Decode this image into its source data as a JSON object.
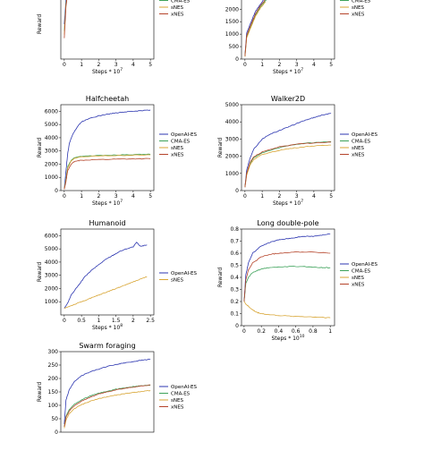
{
  "legend_colors": {
    "OpenAI-ES": "#2b35b0",
    "CMA-ES": "#3da25a",
    "sNES": "#d8a534",
    "xNES": "#b5442a"
  },
  "chart_data": [
    {
      "type": "line",
      "title": "",
      "xlabel": "Steps * 10^7",
      "ylabel": "Reward",
      "xlim": [
        -0.2,
        5.2
      ],
      "ylim": [
        0,
        1000
      ],
      "xticks": [
        0,
        1,
        2,
        3,
        4,
        5
      ],
      "yticks": [],
      "legend": [
        "OpenAI-ES",
        "CMA-ES",
        "sNES",
        "xNES"
      ],
      "series": [
        {
          "name": "OpenAI-ES",
          "x": [
            0,
            0.1,
            0.2,
            0.3
          ],
          "y": [
            500,
            850,
            980,
            1000
          ]
        },
        {
          "name": "CMA-ES",
          "x": [
            0,
            0.1,
            0.2,
            0.3
          ],
          "y": [
            400,
            800,
            960,
            1000
          ]
        },
        {
          "name": "sNES",
          "x": [
            0,
            0.1,
            0.2,
            0.3
          ],
          "y": [
            350,
            780,
            950,
            1000
          ]
        },
        {
          "name": "xNES",
          "x": [
            0,
            0.1,
            0.2,
            0.3
          ],
          "y": [
            300,
            760,
            940,
            1000
          ]
        }
      ]
    },
    {
      "type": "line",
      "title": "",
      "xlabel": "Steps * 10^7",
      "ylabel": "",
      "xlim": [
        -0.2,
        5.2
      ],
      "ylim": [
        0,
        2800
      ],
      "xticks": [
        0,
        1,
        2,
        3,
        4,
        5
      ],
      "yticks": [
        0,
        500,
        1000,
        1500,
        2000,
        2500
      ],
      "legend": [
        "OpenAI-ES",
        "CMA-ES",
        "sNES",
        "xNES"
      ],
      "series": [
        {
          "name": "OpenAI-ES",
          "x": [
            0,
            0.1,
            0.3,
            0.6,
            0.9,
            1.2,
            1.5
          ],
          "y": [
            150,
            1050,
            1400,
            1900,
            2200,
            2500,
            2650
          ]
        },
        {
          "name": "CMA-ES",
          "x": [
            0,
            0.1,
            0.3,
            0.6,
            0.9,
            1.2,
            1.5
          ],
          "y": [
            100,
            900,
            1250,
            1750,
            2100,
            2350,
            2550
          ]
        },
        {
          "name": "sNES",
          "x": [
            0,
            0.1,
            0.3,
            0.6,
            0.9,
            1.2
          ],
          "y": [
            100,
            850,
            1200,
            1700,
            2050,
            2300
          ]
        },
        {
          "name": "xNES",
          "x": [
            0,
            0.1,
            0.3,
            0.6,
            0.9,
            1.2,
            1.4
          ],
          "y": [
            120,
            950,
            1300,
            1800,
            2150,
            2400,
            2600
          ]
        }
      ]
    },
    {
      "type": "line",
      "title": "Halfcheetah",
      "xlabel": "Steps * 10^7",
      "ylabel": "Reward",
      "xlim": [
        -0.2,
        5.2
      ],
      "ylim": [
        0,
        6500
      ],
      "xticks": [
        0,
        1,
        2,
        3,
        4,
        5
      ],
      "yticks": [
        0,
        1000,
        2000,
        3000,
        4000,
        5000,
        6000
      ],
      "legend": [
        "OpenAI-ES",
        "CMA-ES",
        "sNES",
        "xNES"
      ],
      "series": [
        {
          "name": "OpenAI-ES",
          "x": [
            0,
            0.1,
            0.2,
            0.3,
            0.5,
            0.8,
            1.0,
            1.5,
            2.0,
            2.5,
            3.0,
            3.5,
            4.0,
            4.5,
            5.0
          ],
          "y": [
            100,
            1500,
            2800,
            3600,
            4300,
            4900,
            5200,
            5500,
            5650,
            5780,
            5880,
            5950,
            6000,
            6050,
            6100
          ]
        },
        {
          "name": "CMA-ES",
          "x": [
            0,
            0.1,
            0.2,
            0.4,
            0.6,
            1.0,
            2.0,
            3.0,
            4.0,
            5.0
          ],
          "y": [
            100,
            900,
            1800,
            2300,
            2500,
            2600,
            2650,
            2700,
            2720,
            2750
          ]
        },
        {
          "name": "sNES",
          "x": [
            0,
            0.1,
            0.2,
            0.4,
            0.6,
            1.0,
            2.0,
            3.0,
            4.0,
            5.0
          ],
          "y": [
            100,
            800,
            1700,
            2250,
            2450,
            2550,
            2620,
            2650,
            2680,
            2700
          ]
        },
        {
          "name": "xNES",
          "x": [
            0,
            0.1,
            0.2,
            0.4,
            0.6,
            1.0,
            2.0,
            3.0,
            4.0,
            5.0
          ],
          "y": [
            100,
            700,
            1500,
            2000,
            2200,
            2300,
            2350,
            2380,
            2400,
            2420
          ]
        }
      ]
    },
    {
      "type": "line",
      "title": "Walker2D",
      "xlabel": "Steps * 10^7",
      "ylabel": "Reward",
      "xlim": [
        -0.2,
        5.2
      ],
      "ylim": [
        0,
        5000
      ],
      "xticks": [
        0,
        1,
        2,
        3,
        4,
        5
      ],
      "yticks": [
        0,
        1000,
        2000,
        3000,
        4000,
        5000
      ],
      "legend": [
        "OpenAI-ES",
        "CMA-ES",
        "sNES",
        "xNES"
      ],
      "series": [
        {
          "name": "OpenAI-ES",
          "x": [
            0,
            0.1,
            0.3,
            0.5,
            1.0,
            1.5,
            2.0,
            2.5,
            3.0,
            3.5,
            4.0,
            4.5,
            5.0
          ],
          "y": [
            200,
            1200,
            1900,
            2400,
            3000,
            3300,
            3500,
            3700,
            3900,
            4100,
            4250,
            4400,
            4500
          ]
        },
        {
          "name": "CMA-ES",
          "x": [
            0,
            0.1,
            0.3,
            0.5,
            1.0,
            2.0,
            3.0,
            4.0,
            5.0
          ],
          "y": [
            200,
            1000,
            1600,
            1900,
            2200,
            2500,
            2700,
            2800,
            2850
          ]
        },
        {
          "name": "sNES",
          "x": [
            0,
            0.1,
            0.3,
            0.5,
            1.0,
            2.0,
            3.0,
            4.0,
            5.0
          ],
          "y": [
            200,
            900,
            1500,
            1800,
            2100,
            2350,
            2500,
            2600,
            2650
          ]
        },
        {
          "name": "xNES",
          "x": [
            0,
            0.1,
            0.3,
            0.5,
            1.0,
            2.0,
            3.0,
            4.0,
            5.0
          ],
          "y": [
            200,
            1000,
            1650,
            1950,
            2250,
            2550,
            2700,
            2780,
            2820
          ]
        }
      ]
    },
    {
      "type": "line",
      "title": "Humanoid",
      "xlabel": "Steps * 10^8",
      "ylabel": "Reward",
      "xlim": [
        -0.1,
        2.6
      ],
      "ylim": [
        0,
        6500
      ],
      "xticks": [
        0.0,
        0.5,
        1.0,
        1.5,
        2.0,
        2.5
      ],
      "yticks": [
        1000,
        2000,
        3000,
        4000,
        5000,
        6000
      ],
      "legend": [
        "OpenAI-ES",
        "sNES"
      ],
      "series": [
        {
          "name": "OpenAI-ES",
          "x": [
            0,
            0.1,
            0.2,
            0.4,
            0.6,
            0.8,
            1.0,
            1.2,
            1.4,
            1.6,
            1.8,
            2.0,
            2.1,
            2.2,
            2.4
          ],
          "y": [
            500,
            900,
            1500,
            2200,
            2900,
            3400,
            3800,
            4200,
            4500,
            4800,
            5000,
            5150,
            5500,
            5200,
            5300
          ]
        },
        {
          "name": "sNES",
          "x": [
            0,
            0.2,
            0.4,
            0.6,
            0.8,
            1.0,
            1.2,
            1.4,
            1.6,
            1.8,
            2.0,
            2.2,
            2.4
          ],
          "y": [
            500,
            700,
            900,
            1100,
            1300,
            1500,
            1700,
            1900,
            2100,
            2300,
            2500,
            2700,
            2900
          ]
        }
      ]
    },
    {
      "type": "line",
      "title": "Long double-pole",
      "xlabel": "Steps * 10^10",
      "ylabel": "Reward",
      "xlim": [
        -0.03,
        1.05
      ],
      "ylim": [
        0.0,
        0.8
      ],
      "xticks": [
        0.0,
        0.2,
        0.4,
        0.6,
        0.8,
        1.0
      ],
      "yticks": [
        0.0,
        0.1,
        0.2,
        0.3,
        0.4,
        0.5,
        0.6,
        0.7,
        0.8
      ],
      "legend": [
        "OpenAI-ES",
        "CMA-ES",
        "sNES",
        "xNES"
      ],
      "series": [
        {
          "name": "OpenAI-ES",
          "x": [
            0,
            0.02,
            0.05,
            0.1,
            0.2,
            0.3,
            0.4,
            0.5,
            0.6,
            0.7,
            0.8,
            0.9,
            1.0
          ],
          "y": [
            0.2,
            0.42,
            0.52,
            0.6,
            0.66,
            0.69,
            0.71,
            0.72,
            0.73,
            0.74,
            0.74,
            0.75,
            0.76
          ]
        },
        {
          "name": "CMA-ES",
          "x": [
            0,
            0.02,
            0.05,
            0.1,
            0.2,
            0.3,
            0.5,
            0.7,
            0.9,
            1.0
          ],
          "y": [
            0.2,
            0.35,
            0.4,
            0.44,
            0.47,
            0.48,
            0.49,
            0.49,
            0.48,
            0.48
          ]
        },
        {
          "name": "sNES",
          "x": [
            0,
            0.02,
            0.05,
            0.1,
            0.15,
            0.2,
            0.3,
            0.5,
            0.7,
            0.9,
            1.0
          ],
          "y": [
            0.2,
            0.18,
            0.16,
            0.13,
            0.11,
            0.1,
            0.09,
            0.08,
            0.075,
            0.07,
            0.065
          ]
        },
        {
          "name": "xNES",
          "x": [
            0,
            0.02,
            0.05,
            0.1,
            0.2,
            0.3,
            0.4,
            0.6,
            0.8,
            1.0
          ],
          "y": [
            0.2,
            0.38,
            0.46,
            0.52,
            0.57,
            0.59,
            0.6,
            0.61,
            0.61,
            0.6
          ]
        }
      ]
    },
    {
      "type": "line",
      "title": "Swarm foraging",
      "xlabel": "",
      "ylabel": "Reward",
      "xlim": [
        -0.2,
        5.2
      ],
      "ylim": [
        0,
        300
      ],
      "xticks": [],
      "yticks": [
        0,
        50,
        100,
        150,
        200,
        250,
        300
      ],
      "legend": [
        "OpenAI-ES",
        "CMA-ES",
        "sNES",
        "xNES"
      ],
      "series": [
        {
          "name": "OpenAI-ES",
          "x": [
            0,
            0.1,
            0.3,
            0.6,
            1.0,
            1.5,
            2.0,
            2.5,
            3.0,
            3.5,
            4.0,
            4.5,
            5.0
          ],
          "y": [
            30,
            120,
            160,
            190,
            210,
            225,
            235,
            245,
            252,
            258,
            263,
            268,
            272
          ]
        },
        {
          "name": "CMA-ES",
          "x": [
            0,
            0.1,
            0.3,
            0.6,
            1.0,
            1.5,
            2.0,
            2.5,
            3.0,
            3.5,
            4.0,
            4.5,
            5.0
          ],
          "y": [
            20,
            60,
            85,
            105,
            120,
            135,
            145,
            152,
            160,
            165,
            170,
            173,
            175
          ]
        },
        {
          "name": "sNES",
          "x": [
            0,
            0.1,
            0.3,
            0.6,
            1.0,
            1.5,
            2.0,
            2.5,
            3.0,
            3.5,
            4.0,
            4.5,
            5.0
          ],
          "y": [
            15,
            45,
            70,
            88,
            102,
            115,
            125,
            132,
            138,
            143,
            148,
            152,
            155
          ]
        },
        {
          "name": "xNES",
          "x": [
            0,
            0.1,
            0.3,
            0.6,
            1.0,
            1.5,
            2.0,
            2.5,
            3.0,
            3.5,
            4.0,
            4.5,
            5.0
          ],
          "y": [
            20,
            55,
            80,
            100,
            115,
            130,
            142,
            150,
            158,
            163,
            168,
            172,
            176
          ]
        }
      ]
    }
  ]
}
